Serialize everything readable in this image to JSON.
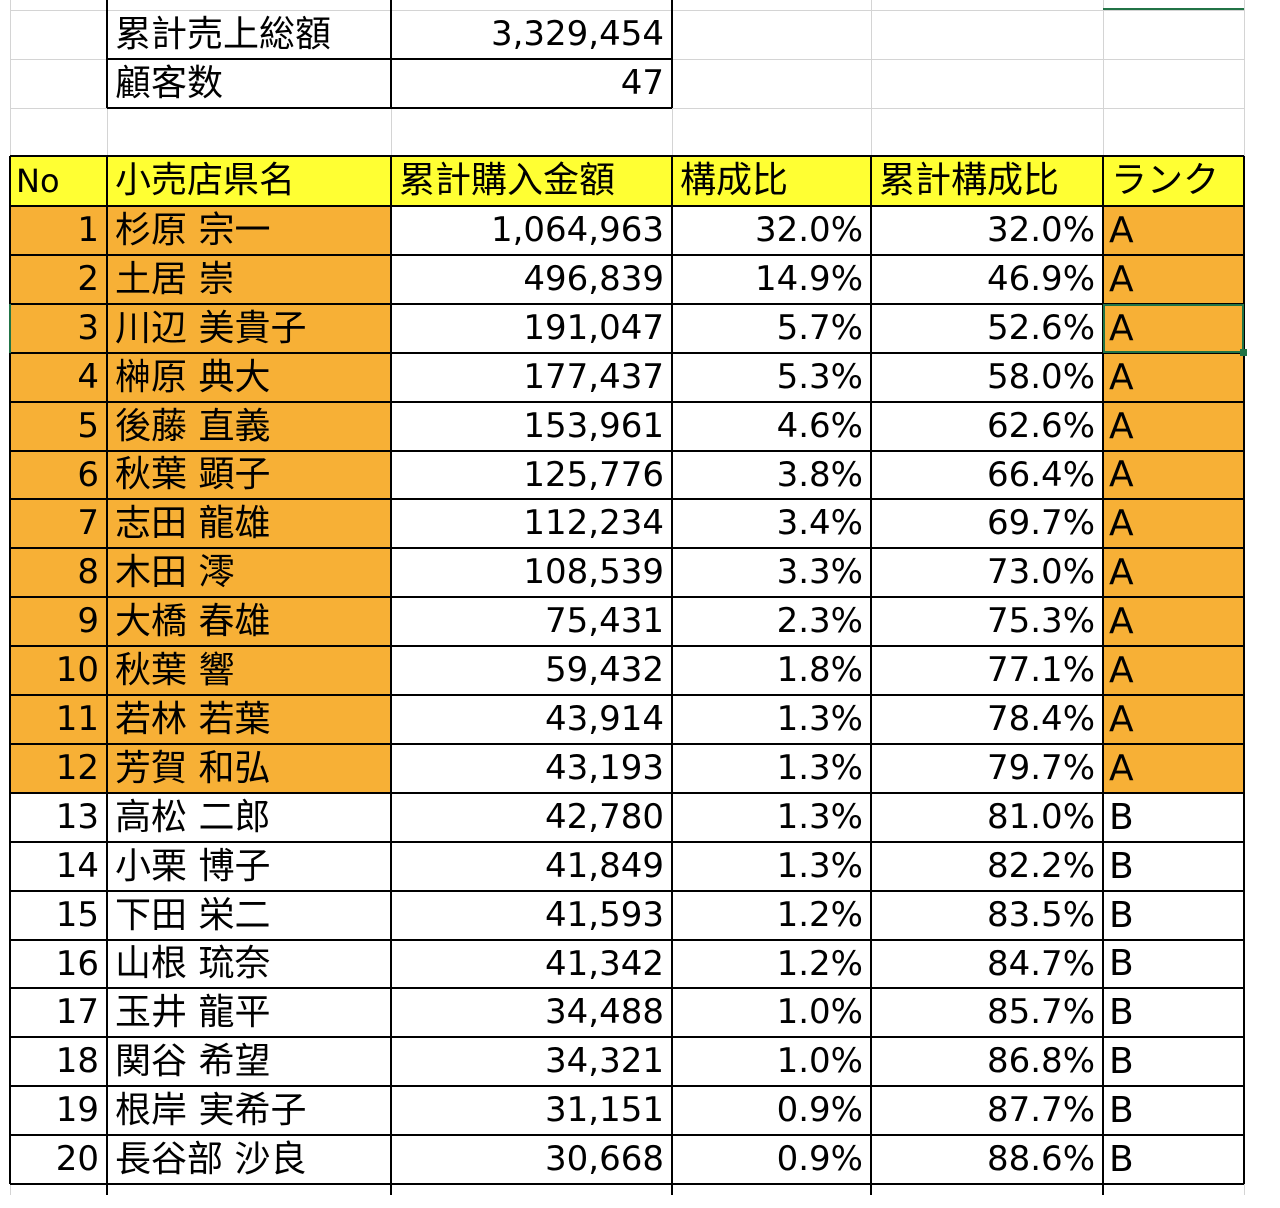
{
  "summary": [
    {
      "label": "累計売上総額",
      "value": "3,329,454"
    },
    {
      "label": "顧客数",
      "value": "47"
    }
  ],
  "headers": {
    "no": "No",
    "name": "小売店県名",
    "amount": "累計購入金額",
    "ratio": "構成比",
    "cum": "累計構成比",
    "rank": "ランク"
  },
  "colors": {
    "header_fill": "#ffff33",
    "rank_a_fill": "#f7b036",
    "selection": "#217346"
  },
  "rows": [
    {
      "no": "1",
      "name": "杉原 宗一",
      "amount": "1,064,963",
      "ratio": "32.0%",
      "cum": "32.0%",
      "rank": "A"
    },
    {
      "no": "2",
      "name": "土居 崇",
      "amount": "496,839",
      "ratio": "14.9%",
      "cum": "46.9%",
      "rank": "A"
    },
    {
      "no": "3",
      "name": "川辺 美貴子",
      "amount": "191,047",
      "ratio": "5.7%",
      "cum": "52.6%",
      "rank": "A"
    },
    {
      "no": "4",
      "name": "榊原 典大",
      "amount": "177,437",
      "ratio": "5.3%",
      "cum": "58.0%",
      "rank": "A"
    },
    {
      "no": "5",
      "name": "後藤 直義",
      "amount": "153,961",
      "ratio": "4.6%",
      "cum": "62.6%",
      "rank": "A"
    },
    {
      "no": "6",
      "name": "秋葉 顕子",
      "amount": "125,776",
      "ratio": "3.8%",
      "cum": "66.4%",
      "rank": "A"
    },
    {
      "no": "7",
      "name": "志田 龍雄",
      "amount": "112,234",
      "ratio": "3.4%",
      "cum": "69.7%",
      "rank": "A"
    },
    {
      "no": "8",
      "name": "木田 澪",
      "amount": "108,539",
      "ratio": "3.3%",
      "cum": "73.0%",
      "rank": "A"
    },
    {
      "no": "9",
      "name": "大橋 春雄",
      "amount": "75,431",
      "ratio": "2.3%",
      "cum": "75.3%",
      "rank": "A"
    },
    {
      "no": "10",
      "name": "秋葉 響",
      "amount": "59,432",
      "ratio": "1.8%",
      "cum": "77.1%",
      "rank": "A"
    },
    {
      "no": "11",
      "name": "若林 若葉",
      "amount": "43,914",
      "ratio": "1.3%",
      "cum": "78.4%",
      "rank": "A"
    },
    {
      "no": "12",
      "name": "芳賀 和弘",
      "amount": "43,193",
      "ratio": "1.3%",
      "cum": "79.7%",
      "rank": "A"
    },
    {
      "no": "13",
      "name": "高松 二郎",
      "amount": "42,780",
      "ratio": "1.3%",
      "cum": "81.0%",
      "rank": "B"
    },
    {
      "no": "14",
      "name": "小栗 博子",
      "amount": "41,849",
      "ratio": "1.3%",
      "cum": "82.2%",
      "rank": "B"
    },
    {
      "no": "15",
      "name": "下田 栄二",
      "amount": "41,593",
      "ratio": "1.2%",
      "cum": "83.5%",
      "rank": "B"
    },
    {
      "no": "16",
      "name": "山根 琉奈",
      "amount": "41,342",
      "ratio": "1.2%",
      "cum": "84.7%",
      "rank": "B"
    },
    {
      "no": "17",
      "name": "玉井 龍平",
      "amount": "34,488",
      "ratio": "1.0%",
      "cum": "85.7%",
      "rank": "B"
    },
    {
      "no": "18",
      "name": "関谷 希望",
      "amount": "34,321",
      "ratio": "1.0%",
      "cum": "86.8%",
      "rank": "B"
    },
    {
      "no": "19",
      "name": "根岸 実希子",
      "amount": "31,151",
      "ratio": "0.9%",
      "cum": "87.7%",
      "rank": "B"
    },
    {
      "no": "20",
      "name": "長谷部 沙良",
      "amount": "30,668",
      "ratio": "0.9%",
      "cum": "88.6%",
      "rank": "B"
    }
  ]
}
